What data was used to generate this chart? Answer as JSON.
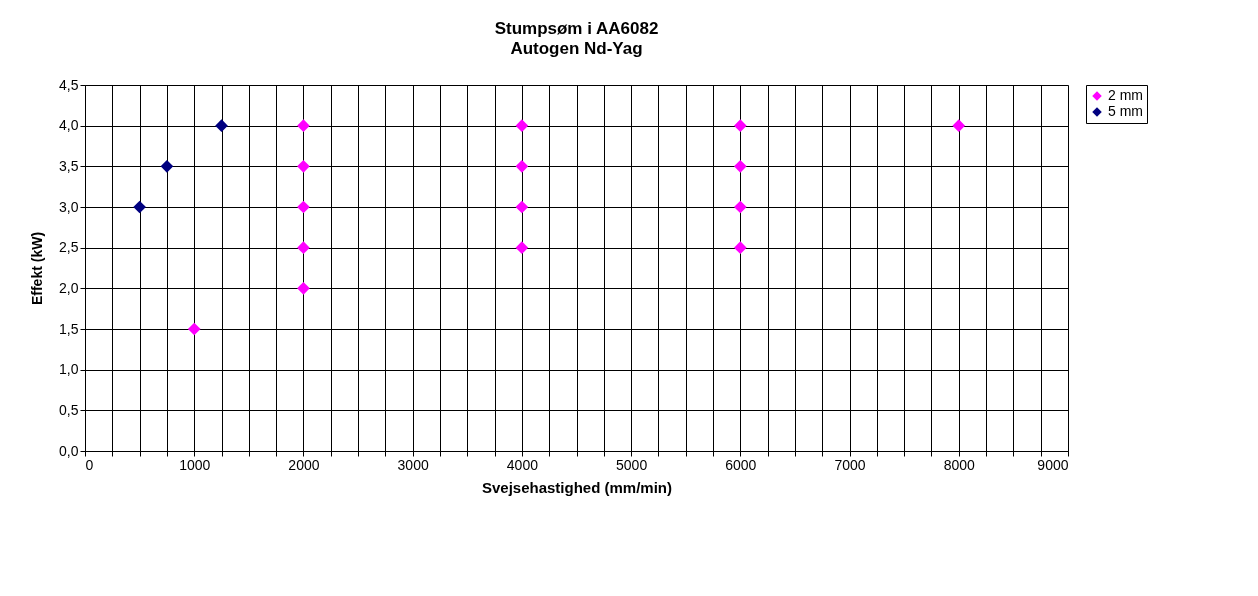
{
  "chart_data": {
    "type": "scatter",
    "title": "Stumpsøm i AA6082",
    "subtitle": "Autogen Nd-Yag",
    "xlabel": "Svejsehastighed (mm/min)",
    "ylabel": "Effekt (kW)",
    "xlim": [
      0,
      9000
    ],
    "xticks": [
      0,
      {
        "value": 250,
        "label": null
      },
      {
        "value": 500,
        "label": null
      },
      {
        "value": 750,
        "label": null
      },
      1000,
      {
        "value": 1250,
        "label": null
      },
      {
        "value": 1500,
        "label": null
      },
      {
        "value": 1750,
        "label": null
      },
      2000,
      {
        "value": 2250,
        "label": null
      },
      {
        "value": 2500,
        "label": null
      },
      {
        "value": 2750,
        "label": null
      },
      3000,
      {
        "value": 3250,
        "label": null
      },
      {
        "value": 3500,
        "label": null
      },
      {
        "value": 3750,
        "label": null
      },
      4000,
      {
        "value": 4250,
        "label": null
      },
      {
        "value": 4500,
        "label": null
      },
      {
        "value": 4750,
        "label": null
      },
      5000,
      {
        "value": 5250,
        "label": null
      },
      {
        "value": 5500,
        "label": null
      },
      {
        "value": 5750,
        "label": null
      },
      6000,
      {
        "value": 6250,
        "label": null
      },
      {
        "value": 6500,
        "label": null
      },
      {
        "value": 6750,
        "label": null
      },
      7000,
      {
        "value": 7250,
        "label": null
      },
      {
        "value": 7500,
        "label": null
      },
      {
        "value": 7750,
        "label": null
      },
      8000,
      {
        "value": 8250,
        "label": null
      },
      {
        "value": 8500,
        "label": null
      },
      {
        "value": 8750,
        "label": null
      },
      9000
    ],
    "ylim": [
      0,
      4.5
    ],
    "yticks": [
      {
        "value": 0,
        "label": "0,0"
      },
      {
        "value": 0.5,
        "label": "0,5"
      },
      {
        "value": 1,
        "label": "1,0"
      },
      {
        "value": 1.5,
        "label": "1,5"
      },
      {
        "value": 2,
        "label": "2,0"
      },
      {
        "value": 2.5,
        "label": "2,5"
      },
      {
        "value": 3,
        "label": "3,0"
      },
      {
        "value": 3.5,
        "label": "3,5"
      },
      {
        "value": 4,
        "label": "4,0"
      },
      {
        "value": 4.5,
        "label": "4,5"
      }
    ],
    "grid": true,
    "legend": "right",
    "marker": "diamond",
    "series": [
      {
        "name": "2 mm",
        "color": "#ff00ff",
        "x": [
          1000,
          2000,
          2000,
          2000,
          2000,
          2000,
          4000,
          4000,
          4000,
          4000,
          6000,
          6000,
          6000,
          6000,
          8000
        ],
        "values": [
          1.5,
          2.0,
          2.5,
          3.0,
          3.5,
          4.0,
          2.5,
          3.0,
          3.5,
          4.0,
          2.5,
          3.0,
          3.5,
          4.0,
          4.0
        ]
      },
      {
        "name": "5 mm",
        "color": "#000080",
        "x": [
          500,
          750,
          1250
        ],
        "values": [
          3.0,
          3.5,
          4.0
        ]
      }
    ]
  }
}
